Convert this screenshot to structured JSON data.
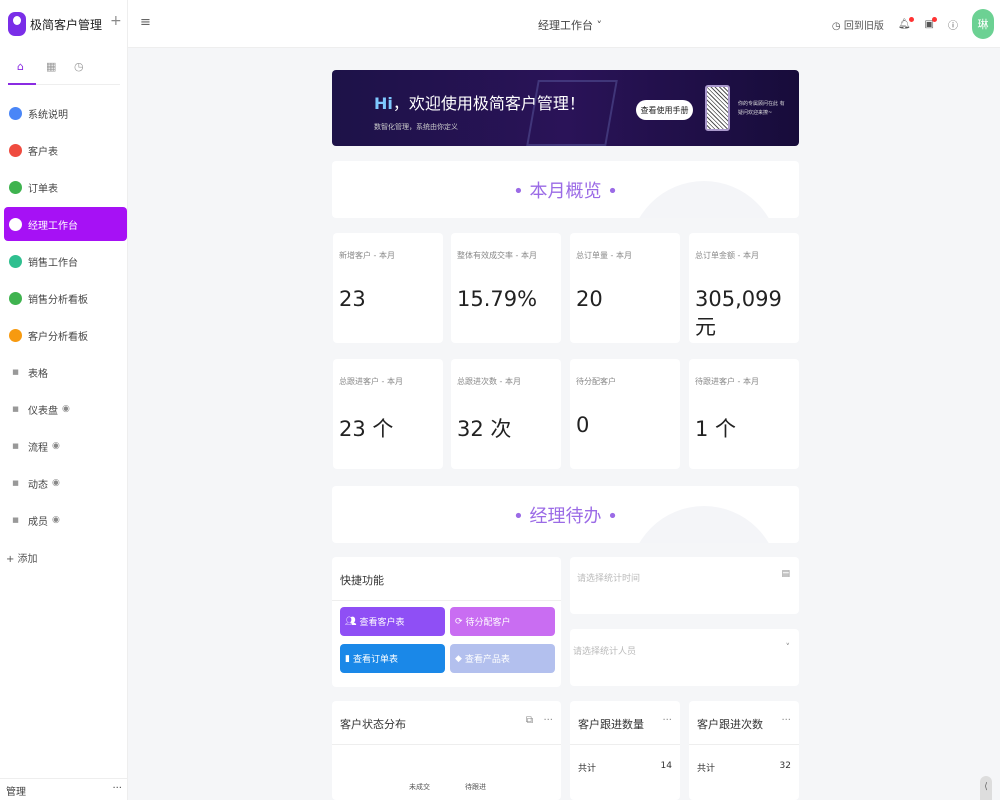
{
  "app": {
    "name": "极简客户管理"
  },
  "sidebar": {
    "items": [
      {
        "label": "系统说明",
        "color": "#4a86f7",
        "eye": false
      },
      {
        "label": "客户表",
        "color": "#ef4b3f",
        "eye": false
      },
      {
        "label": "订单表",
        "color": "#3fb34f",
        "eye": false
      },
      {
        "label": "经理工作台",
        "color": "#a611f5",
        "eye": false,
        "active": true
      },
      {
        "label": "销售工作台",
        "color": "#2fbf8f",
        "eye": false
      },
      {
        "label": "销售分析看板",
        "color": "#3fb34f",
        "eye": false
      },
      {
        "label": "客户分析看板",
        "color": "#f79a10",
        "eye": false
      },
      {
        "label": "表格",
        "color": "#999999",
        "eye": false
      },
      {
        "label": "仪表盘",
        "color": "#999999",
        "eye": true
      },
      {
        "label": "流程",
        "color": "#999999",
        "eye": true
      },
      {
        "label": "动态",
        "color": "#999999",
        "eye": true
      },
      {
        "label": "成员",
        "color": "#999999",
        "eye": true
      }
    ],
    "add": "+ 添加",
    "manage": "管理",
    "manage_more": "···"
  },
  "header": {
    "title": "经理工作台 ˅",
    "back": "回到旧版",
    "avatar": "琳"
  },
  "banner": {
    "hi": "Hi",
    "title": "，欢迎使用极简客户管理！",
    "subtitle": "数智化管理，系统由你定义",
    "button": "查看使用手册",
    "qr_text": "你的专属顾问在此 有疑问欢迎来撩~"
  },
  "section1": "•  本月概览  •",
  "section2": "•  经理待办  •",
  "stats": [
    {
      "label": "新增客户 - 本月",
      "value": "23"
    },
    {
      "label": "整体有效成交率 - 本月",
      "value": "15.79%"
    },
    {
      "label": "总订单量 - 本月",
      "value": "20"
    },
    {
      "label": "总订单金额 - 本月",
      "value": "305,099 元"
    },
    {
      "label": "总跟进客户 - 本月",
      "value": "23 个"
    },
    {
      "label": "总跟进次数 - 本月",
      "value": "32 次"
    },
    {
      "label": "待分配客户",
      "value": "0"
    },
    {
      "label": "待跟进客户 - 本月",
      "value": "1 个"
    }
  ],
  "quick": {
    "title": "快捷功能",
    "buttons": [
      {
        "label": "查看客户表",
        "color": "#8f4ff5"
      },
      {
        "label": "待分配客户",
        "color": "#c96df2"
      },
      {
        "label": "查看订单表",
        "color": "#1a88e8"
      },
      {
        "label": "查看产品表",
        "color": "#b3c0ee"
      }
    ]
  },
  "filters": {
    "time_placeholder": "请选择统计时间",
    "person_placeholder": "请选择统计人员"
  },
  "status_panel": {
    "title": "客户状态分布",
    "labels": [
      "未成交",
      "待跟进"
    ]
  },
  "follow_count": {
    "title": "客户跟进数量",
    "total_label": "共计",
    "total": "14"
  },
  "follow_times": {
    "title": "客户跟进次数",
    "total_label": "共计",
    "total": "32"
  }
}
